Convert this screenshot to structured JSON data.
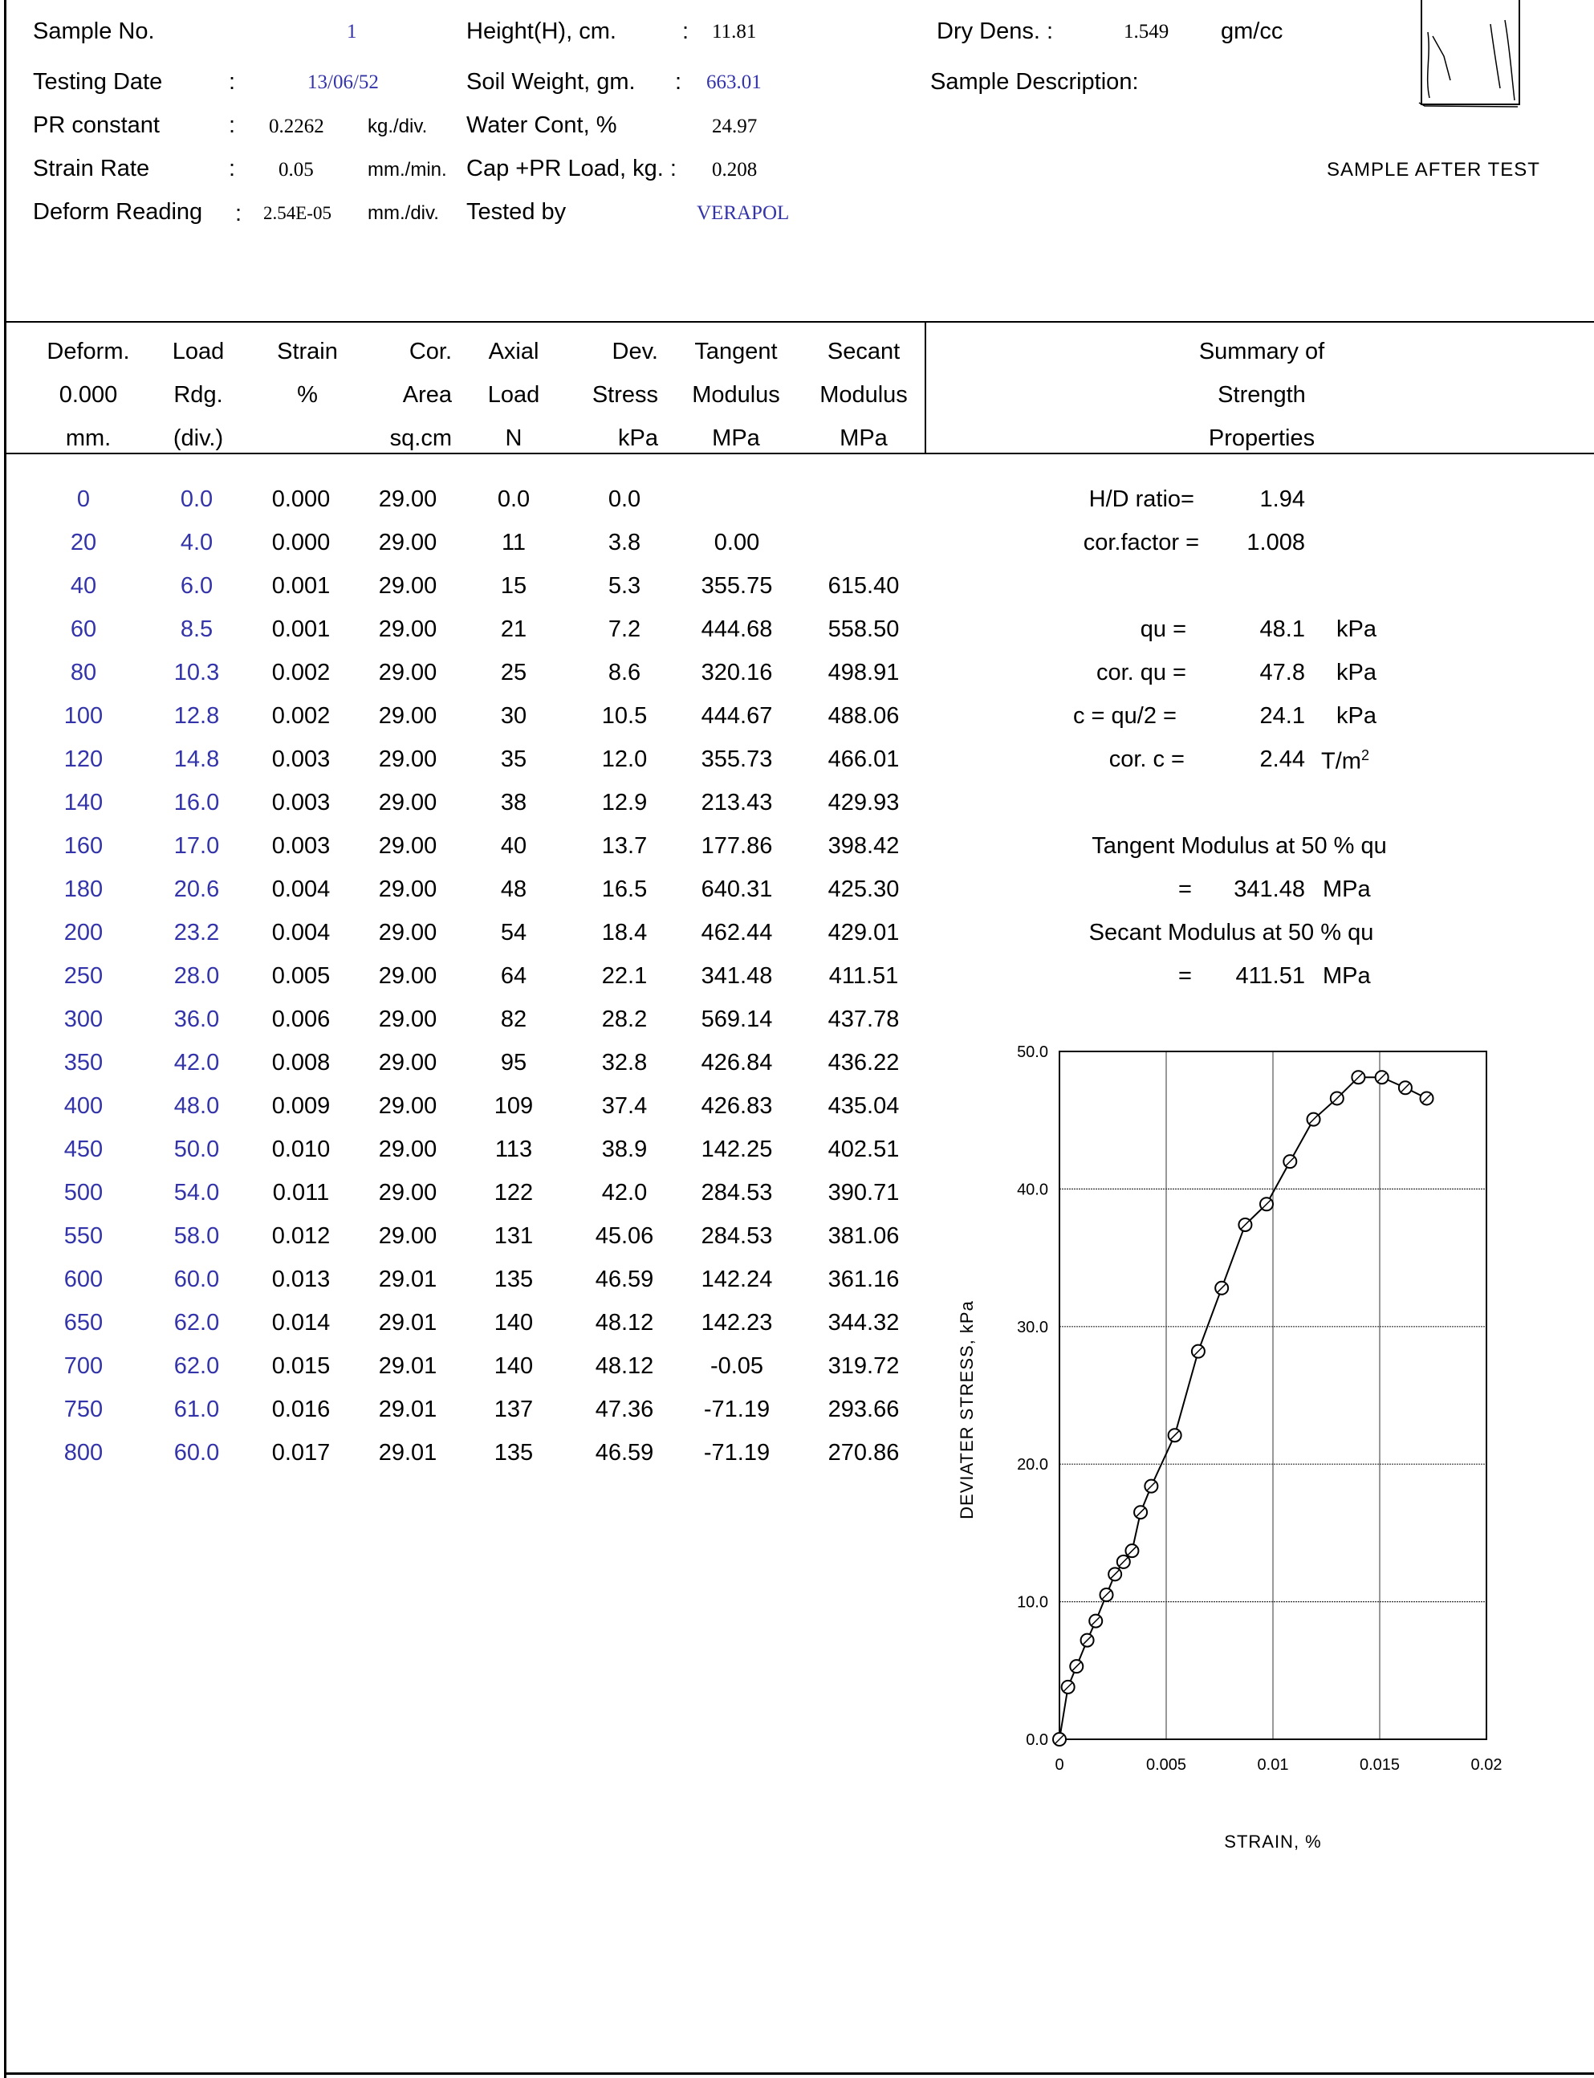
{
  "header": {
    "sample_no_label": "Sample No.",
    "sample_no": "1",
    "testing_date_label": "Testing Date",
    "testing_date": "13/06/52",
    "pr_constant_label": "PR constant",
    "pr_constant": "0.2262",
    "pr_constant_unit": "kg./div.",
    "strain_rate_label": "Strain Rate",
    "strain_rate": "0.05",
    "strain_rate_unit": "mm./min.",
    "deform_reading_label": "Deform Reading",
    "deform_reading": "2.54E-05",
    "deform_reading_unit": "mm./div.",
    "height_label": "Height(H), cm.",
    "height": "11.81",
    "soil_weight_label": "Soil Weight, gm.",
    "soil_weight": "663.01",
    "water_cont_label": "Water Cont, %",
    "water_cont": "24.97",
    "cap_label": "Cap +PR Load, kg. :",
    "cap_load": "0.208",
    "tested_by_label": "Tested by",
    "tested_by": "VERAPOL",
    "dry_dens_label": "Dry Dens. :",
    "dry_dens": "1.549",
    "dry_dens_unit": "gm/cc",
    "sample_desc_label": "Sample Description:",
    "sample_after_test": "SAMPLE AFTER  TEST",
    "colon": ":"
  },
  "table": {
    "headers": [
      [
        "Deform.",
        "0.000",
        "mm."
      ],
      [
        "Load",
        "Rdg.",
        "(div.)"
      ],
      [
        "Strain",
        "%",
        ""
      ],
      [
        "Cor.",
        "Area",
        "sq.cm"
      ],
      [
        "Axial",
        "Load",
        "N"
      ],
      [
        "Dev.",
        "Stress",
        "kPa"
      ],
      [
        "Tangent",
        "Modulus",
        "MPa"
      ],
      [
        "Secant",
        "Modulus",
        "MPa"
      ]
    ],
    "rows": [
      [
        "0",
        "0.0",
        "0.000",
        "29.00",
        "0.0",
        "0.0",
        "",
        ""
      ],
      [
        "20",
        "4.0",
        "0.000",
        "29.00",
        "11",
        "3.8",
        "0.00",
        ""
      ],
      [
        "40",
        "6.0",
        "0.001",
        "29.00",
        "15",
        "5.3",
        "355.75",
        "615.40"
      ],
      [
        "60",
        "8.5",
        "0.001",
        "29.00",
        "21",
        "7.2",
        "444.68",
        "558.50"
      ],
      [
        "80",
        "10.3",
        "0.002",
        "29.00",
        "25",
        "8.6",
        "320.16",
        "498.91"
      ],
      [
        "100",
        "12.8",
        "0.002",
        "29.00",
        "30",
        "10.5",
        "444.67",
        "488.06"
      ],
      [
        "120",
        "14.8",
        "0.003",
        "29.00",
        "35",
        "12.0",
        "355.73",
        "466.01"
      ],
      [
        "140",
        "16.0",
        "0.003",
        "29.00",
        "38",
        "12.9",
        "213.43",
        "429.93"
      ],
      [
        "160",
        "17.0",
        "0.003",
        "29.00",
        "40",
        "13.7",
        "177.86",
        "398.42"
      ],
      [
        "180",
        "20.6",
        "0.004",
        "29.00",
        "48",
        "16.5",
        "640.31",
        "425.30"
      ],
      [
        "200",
        "23.2",
        "0.004",
        "29.00",
        "54",
        "18.4",
        "462.44",
        "429.01"
      ],
      [
        "250",
        "28.0",
        "0.005",
        "29.00",
        "64",
        "22.1",
        "341.48",
        "411.51"
      ],
      [
        "300",
        "36.0",
        "0.006",
        "29.00",
        "82",
        "28.2",
        "569.14",
        "437.78"
      ],
      [
        "350",
        "42.0",
        "0.008",
        "29.00",
        "95",
        "32.8",
        "426.84",
        "436.22"
      ],
      [
        "400",
        "48.0",
        "0.009",
        "29.00",
        "109",
        "37.4",
        "426.83",
        "435.04"
      ],
      [
        "450",
        "50.0",
        "0.010",
        "29.00",
        "113",
        "38.9",
        "142.25",
        "402.51"
      ],
      [
        "500",
        "54.0",
        "0.011",
        "29.00",
        "122",
        "42.0",
        "284.53",
        "390.71"
      ],
      [
        "550",
        "58.0",
        "0.012",
        "29.00",
        "131",
        "45.06",
        "284.53",
        "381.06"
      ],
      [
        "600",
        "60.0",
        "0.013",
        "29.01",
        "135",
        "46.59",
        "142.24",
        "361.16"
      ],
      [
        "650",
        "62.0",
        "0.014",
        "29.01",
        "140",
        "48.12",
        "142.23",
        "344.32"
      ],
      [
        "700",
        "62.0",
        "0.015",
        "29.01",
        "140",
        "48.12",
        "-0.05",
        "319.72"
      ],
      [
        "750",
        "61.0",
        "0.016",
        "29.01",
        "137",
        "47.36",
        "-71.19",
        "293.66"
      ],
      [
        "800",
        "60.0",
        "0.017",
        "29.01",
        "135",
        "46.59",
        "-71.19",
        "270.86"
      ]
    ]
  },
  "summary": {
    "title_lines": [
      "Summary of",
      "Strength",
      "Properties"
    ],
    "hd_label": "H/D ratio=",
    "hd_value": "1.94",
    "cf_label": "cor.factor =",
    "cf_value": "1.008",
    "qu_label": "qu =",
    "qu_value": "48.1",
    "qu_unit": "kPa",
    "corqu_label": "cor. qu  =",
    "corqu_value": "47.8",
    "corqu_unit": "kPa",
    "c_label": "c = qu/2 =",
    "c_value": "24.1",
    "c_unit": "kPa",
    "corc_label": "cor. c  =",
    "corc_value": "2.44",
    "corc_unit": "T/m",
    "corc_sup": "2",
    "tangent_label": "Tangent Modulus at 50 % qu",
    "tangent_eq": "=",
    "tangent_value": "341.48",
    "tangent_unit": "MPa",
    "secant_label": "Secant Modulus at 50 % qu",
    "secant_eq": "=",
    "secant_value": "411.51",
    "secant_unit": "MPa"
  },
  "chart_data": {
    "type": "scatter",
    "xlabel": "STRAIN, %",
    "ylabel": "DEVIATER STRESS, kPa",
    "xlim": [
      0,
      0.02
    ],
    "ylim": [
      0,
      50
    ],
    "x_ticks": [
      "0",
      "0.005",
      "0.01",
      "0.015",
      "0.02"
    ],
    "y_ticks": [
      "0.0",
      "10.0",
      "20.0",
      "30.0",
      "40.0",
      "50.0"
    ],
    "grid": true,
    "x": [
      0.0,
      0.0004,
      0.0008,
      0.0013,
      0.0017,
      0.0022,
      0.0026,
      0.003,
      0.0034,
      0.0038,
      0.0043,
      0.0054,
      0.0065,
      0.0076,
      0.0087,
      0.0097,
      0.0108,
      0.0119,
      0.013,
      0.014,
      0.0151,
      0.0162,
      0.0172
    ],
    "y": [
      0.0,
      3.8,
      5.3,
      7.2,
      8.6,
      10.5,
      12.0,
      12.9,
      13.7,
      16.5,
      18.4,
      22.1,
      28.2,
      32.8,
      37.4,
      38.9,
      42.0,
      45.06,
      46.59,
      48.12,
      48.12,
      47.36,
      46.59
    ]
  }
}
